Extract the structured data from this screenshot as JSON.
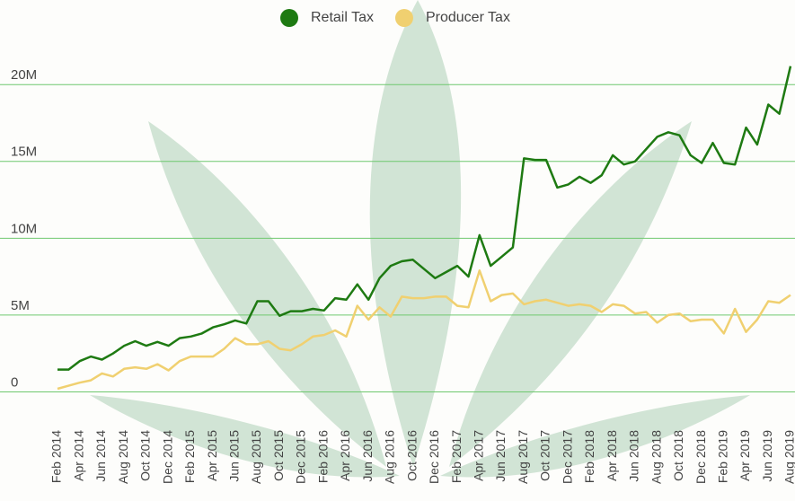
{
  "chart_data": {
    "type": "line",
    "categories": [
      "Feb 2014",
      null,
      "Apr 2014",
      null,
      "Jun 2014",
      null,
      "Aug 2014",
      null,
      "Oct 2014",
      null,
      "Dec 2014",
      null,
      "Feb 2015",
      null,
      "Apr 2015",
      null,
      "Jun 2015",
      null,
      "Aug 2015",
      null,
      "Oct 2015",
      null,
      "Dec 2015",
      null,
      "Feb 2016",
      null,
      "Apr 2016",
      null,
      "Jun 2016",
      null,
      "Aug 2016",
      null,
      "Oct 2016",
      null,
      "Dec 2016",
      null,
      "Feb 2017",
      null,
      "Apr 2017",
      null,
      "Jun 2017",
      null,
      "Aug 2017",
      null,
      "Oct 2017",
      null,
      "Dec 2017",
      null,
      "Feb 2018",
      null,
      "Apr 2018",
      null,
      "Jun 2018",
      null,
      "Aug 2018",
      null,
      "Oct 2018",
      null,
      "Dec 2018",
      null,
      "Feb 2019",
      null,
      "Apr 2019",
      null,
      "Jun 2019",
      null,
      "Aug 2019"
    ],
    "series": [
      {
        "name": "Retail Tax",
        "color": "#1e7a12",
        "values": [
          1450000,
          1450000,
          2000000,
          2300000,
          2100000,
          2500000,
          3000000,
          3300000,
          3000000,
          3250000,
          3000000,
          3500000,
          3600000,
          3800000,
          4200000,
          4400000,
          4650000,
          4450000,
          5900000,
          5900000,
          4950000,
          5250000,
          5250000,
          5400000,
          5300000,
          6100000,
          6000000,
          7000000,
          6000000,
          7400000,
          8200000,
          8500000,
          8600000,
          8000000,
          7400000,
          7800000,
          8200000,
          7500000,
          10200000,
          8200000,
          8800000,
          9400000,
          15200000,
          15100000,
          15100000,
          13300000,
          13500000,
          14000000,
          13600000,
          14100000,
          15400000,
          14800000,
          15000000,
          15800000,
          16600000,
          16900000,
          16700000,
          15400000,
          14900000,
          16200000,
          14900000,
          14800000,
          17200000,
          16100000,
          18700000,
          18100000,
          21200000
        ]
      },
      {
        "name": "Producer Tax",
        "color": "#f0d070",
        "values": [
          200000,
          400000,
          600000,
          750000,
          1200000,
          1000000,
          1500000,
          1600000,
          1500000,
          1800000,
          1400000,
          2000000,
          2300000,
          2300000,
          2300000,
          2800000,
          3500000,
          3100000,
          3100000,
          3300000,
          2800000,
          2700000,
          3100000,
          3600000,
          3700000,
          4000000,
          3600000,
          5600000,
          4700000,
          5500000,
          4900000,
          6200000,
          6100000,
          6100000,
          6200000,
          6200000,
          5600000,
          5500000,
          7900000,
          5900000,
          6300000,
          6400000,
          5700000,
          5900000,
          6000000,
          5800000,
          5600000,
          5700000,
          5600000,
          5200000,
          5700000,
          5600000,
          5100000,
          5200000,
          4500000,
          5000000,
          5100000,
          4600000,
          4700000,
          4700000,
          3800000,
          5400000,
          3900000,
          4700000,
          5900000,
          5800000,
          6300000
        ]
      }
    ],
    "ylim": [
      -500000,
      22000000
    ],
    "yticks": [
      0,
      {
        "value": 5000000,
        "label": "5M"
      },
      {
        "value": 10000000,
        "label": "10M"
      },
      {
        "value": 15000000,
        "label": "15M"
      },
      {
        "value": 20000000,
        "label": "20M"
      }
    ],
    "grid": true,
    "legend": "top"
  }
}
